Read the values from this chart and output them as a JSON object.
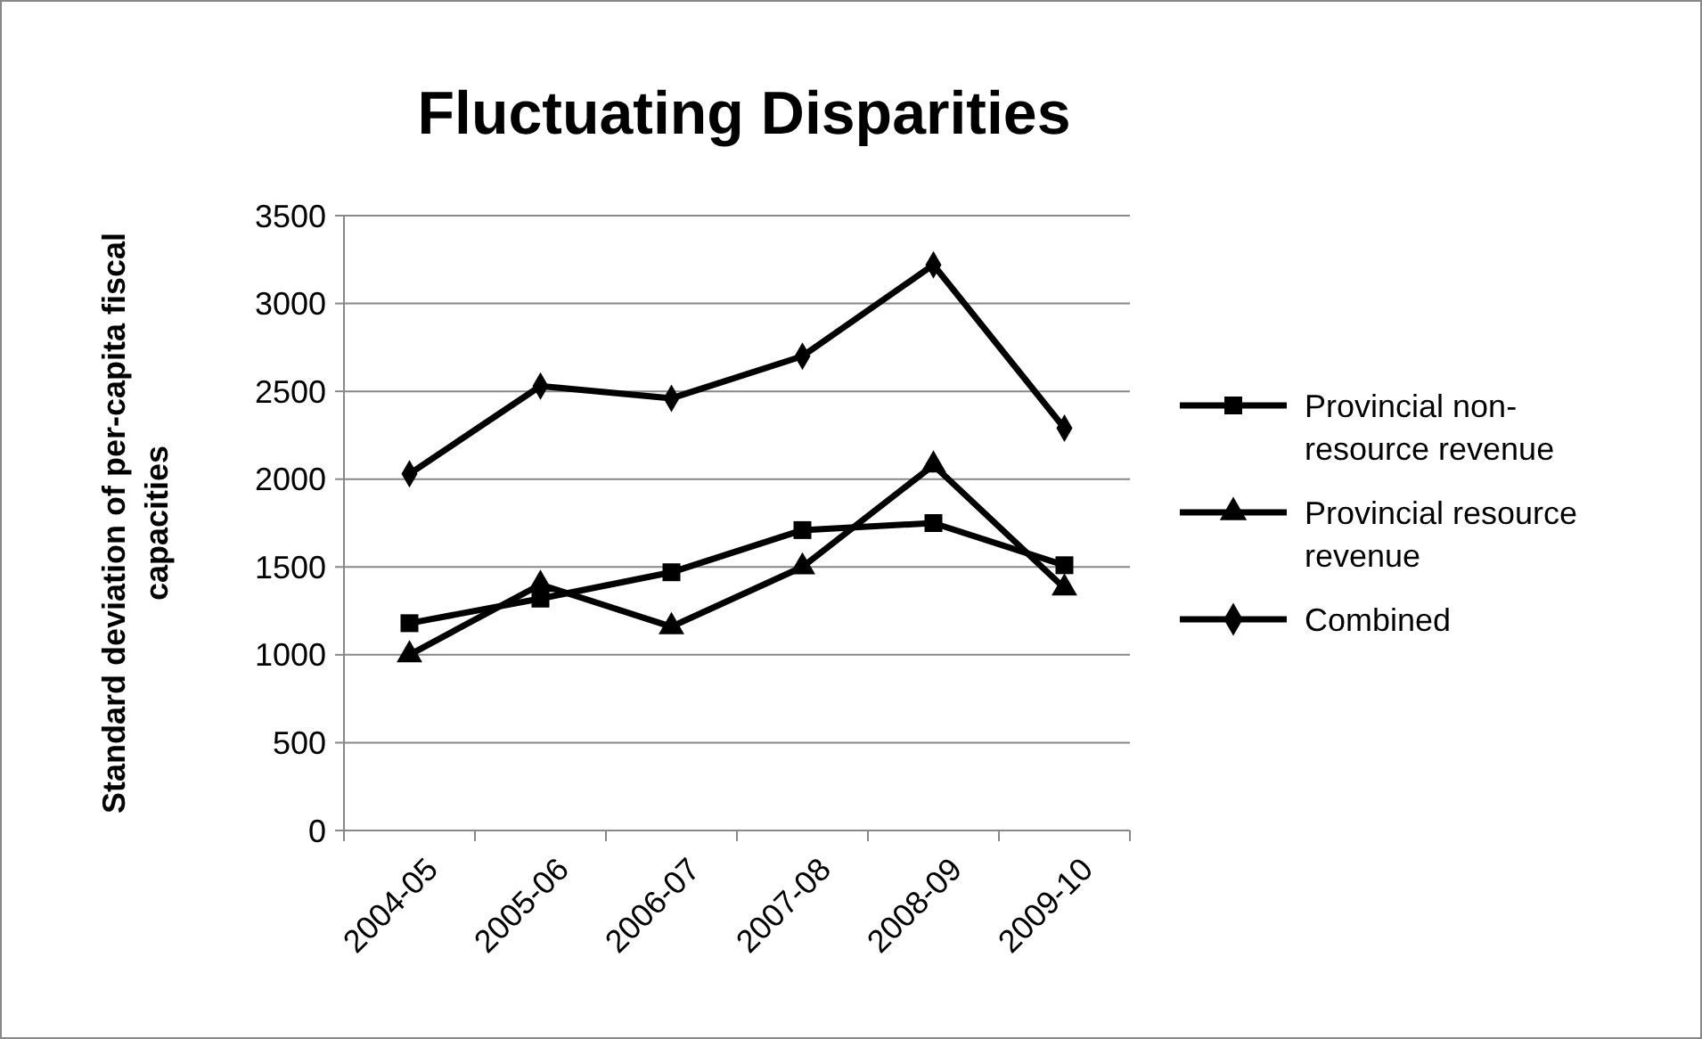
{
  "chart_data": {
    "type": "line",
    "title": "Fluctuating Disparities",
    "ylabel": "Standard deviation of per-capita fiscal capacities",
    "categories": [
      "2004-05",
      "2005-06",
      "2006-07",
      "2007-08",
      "2008-09",
      "2009-10"
    ],
    "series": [
      {
        "name": "Provincial non-resource revenue",
        "color": "#000000",
        "marker": "square",
        "values": [
          1180,
          1320,
          1470,
          1710,
          1750,
          1510
        ]
      },
      {
        "name": "Provincial resource revenue",
        "color": "#000000",
        "marker": "triangle",
        "values": [
          1000,
          1400,
          1160,
          1500,
          2080,
          1380
        ]
      },
      {
        "name": "Combined",
        "color": "#000000",
        "marker": "diamond",
        "values": [
          2030,
          2530,
          2460,
          2700,
          3220,
          2290
        ]
      }
    ],
    "ylim": [
      0,
      3500
    ],
    "yticks": [
      0,
      500,
      1000,
      1500,
      2000,
      2500,
      3000,
      3500
    ],
    "grid": "y",
    "legend": "right",
    "line_style": "solid"
  }
}
